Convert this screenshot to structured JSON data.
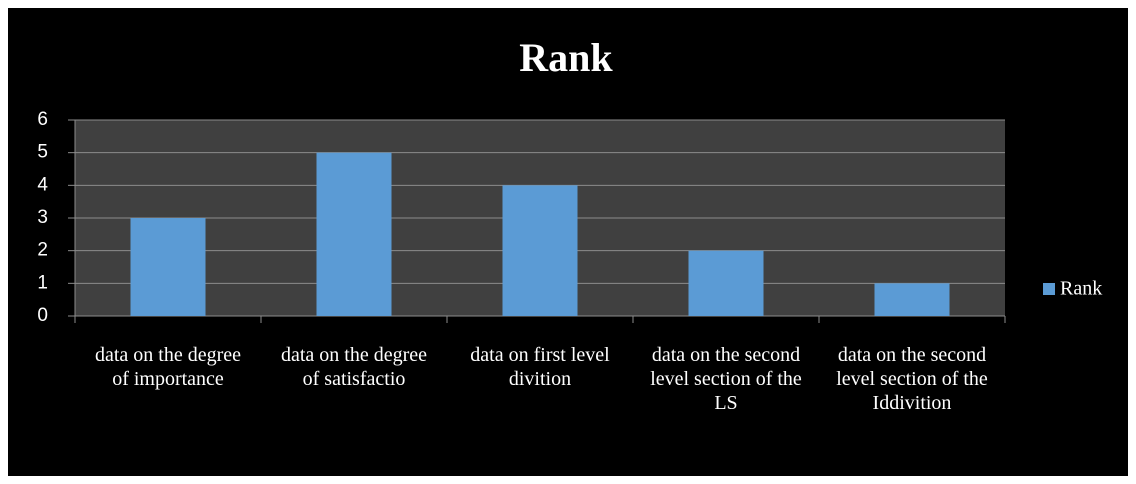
{
  "chart_data": {
    "type": "bar",
    "title": "Rank",
    "categories": [
      "data on the degree of importance",
      "data on the degree of satisfactio",
      "data on first level divition",
      "data on the second level section of the LS",
      "data on the second level section of the Iddivition"
    ],
    "series": [
      {
        "name": "Rank",
        "color": "#5b9bd5",
        "values": [
          3,
          5,
          4,
          2,
          1
        ]
      }
    ],
    "ylim": [
      0,
      6
    ],
    "yticks": [
      0,
      1,
      2,
      3,
      4,
      5,
      6
    ],
    "grid": true,
    "legend": "right"
  }
}
